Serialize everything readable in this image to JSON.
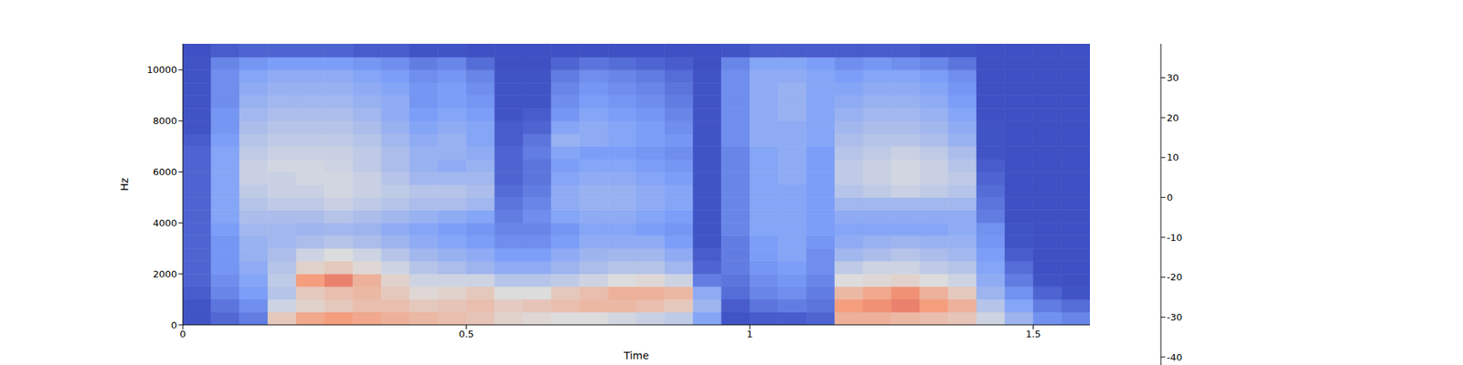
{
  "chart_data": {
    "type": "heatmap",
    "xlabel": "Time",
    "ylabel": "Hz",
    "xlim": [
      0,
      1.6
    ],
    "xticks": [
      0,
      0.5,
      1,
      1.5
    ],
    "ylim": [
      0,
      11025
    ],
    "yticks": [
      0,
      2000,
      4000,
      6000,
      8000,
      10000
    ],
    "x_edges": [
      0,
      0.05,
      0.1,
      0.15,
      0.2,
      0.25,
      0.3,
      0.35,
      0.4,
      0.45,
      0.5,
      0.55,
      0.6,
      0.65,
      0.7,
      0.75,
      0.8,
      0.85,
      0.9,
      0.95,
      1.0,
      1.05,
      1.1,
      1.15,
      1.2,
      1.25,
      1.3,
      1.35,
      1.4,
      1.45,
      1.5,
      1.55,
      1.6
    ],
    "y_edges": [
      0,
      500,
      1000,
      1500,
      2000,
      2500,
      3000,
      3500,
      4000,
      4500,
      5000,
      5500,
      6000,
      6500,
      7000,
      7500,
      8000,
      8500,
      9000,
      9500,
      10000,
      10500,
      11025
    ],
    "z": [
      [
        -40,
        -40,
        -38,
        -36,
        -36,
        -36,
        -36,
        -36,
        -36,
        -36,
        -36,
        -36,
        -36,
        -36,
        -38,
        -40,
        -40,
        -40,
        -40,
        -40,
        -40,
        -41
      ],
      [
        -35,
        -32,
        -28,
        -26,
        -24,
        -24,
        -24,
        -22,
        -20,
        -20,
        -20,
        -20,
        -20,
        -20,
        -22,
        -24,
        -24,
        -26,
        -26,
        -26,
        -28,
        -38
      ],
      [
        -30,
        -26,
        -22,
        -20,
        -18,
        -16,
        -16,
        -14,
        -12,
        -10,
        -8,
        -6,
        -6,
        -8,
        -10,
        -12,
        -14,
        -16,
        -18,
        -20,
        -24,
        -36
      ],
      [
        5,
        -5,
        -10,
        -8,
        -10,
        -12,
        -14,
        -14,
        -12,
        -8,
        -6,
        -6,
        -4,
        -6,
        -8,
        -10,
        -12,
        -14,
        -16,
        -18,
        -22,
        -36
      ],
      [
        15,
        2,
        5,
        18,
        2,
        -5,
        -12,
        -15,
        -12,
        -8,
        -6,
        -4,
        -4,
        -6,
        -8,
        -10,
        -12,
        -14,
        -16,
        -18,
        -22,
        -36
      ],
      [
        18,
        5,
        8,
        22,
        5,
        -2,
        -10,
        -14,
        -10,
        -6,
        -4,
        -4,
        -5,
        -6,
        -8,
        -10,
        -12,
        -14,
        -16,
        -18,
        -22,
        -36
      ],
      [
        15,
        8,
        10,
        12,
        0,
        -5,
        -12,
        -15,
        -12,
        -8,
        -6,
        -6,
        -8,
        -8,
        -10,
        -12,
        -14,
        -16,
        -18,
        -20,
        -24,
        -38
      ],
      [
        12,
        8,
        5,
        2,
        -5,
        -10,
        -15,
        -18,
        -14,
        -10,
        -8,
        -10,
        -12,
        -12,
        -14,
        -16,
        -18,
        -18,
        -20,
        -22,
        -26,
        -38
      ],
      [
        10,
        5,
        0,
        -5,
        -10,
        -14,
        -18,
        -20,
        -16,
        -12,
        -10,
        -14,
        -16,
        -16,
        -18,
        -20,
        -22,
        -24,
        -24,
        -26,
        -30,
        -40
      ],
      [
        8,
        6,
        2,
        -5,
        -12,
        -16,
        -20,
        -22,
        -18,
        -12,
        -10,
        -14,
        -18,
        -16,
        -16,
        -18,
        -20,
        -22,
        -22,
        -24,
        -28,
        -40
      ],
      [
        6,
        8,
        5,
        -5,
        -15,
        -18,
        -22,
        -24,
        -20,
        -14,
        -12,
        -14,
        -16,
        -18,
        -20,
        -20,
        -22,
        -24,
        -26,
        -28,
        -34,
        -41
      ],
      [
        2,
        4,
        -2,
        -10,
        -18,
        -22,
        -26,
        -28,
        -30,
        -32,
        -34,
        -36,
        -36,
        -36,
        -38,
        -38,
        -40,
        -40,
        -40,
        -40,
        -41,
        -41
      ],
      [
        0,
        6,
        -2,
        -10,
        -18,
        -22,
        -26,
        -28,
        -26,
        -28,
        -30,
        -32,
        -32,
        -30,
        -32,
        -36,
        -38,
        -40,
        -40,
        -40,
        -41,
        -41
      ],
      [
        -2,
        8,
        5,
        -8,
        -15,
        -18,
        -22,
        -24,
        -20,
        -18,
        -18,
        -20,
        -22,
        -20,
        -16,
        -20,
        -24,
        -26,
        -28,
        -30,
        -36,
        -41
      ],
      [
        -2,
        10,
        8,
        -5,
        -12,
        -15,
        -18,
        -20,
        -18,
        -16,
        -16,
        -18,
        -20,
        -22,
        -18,
        -18,
        -20,
        -22,
        -24,
        -26,
        -32,
        -41
      ],
      [
        -4,
        10,
        12,
        -2,
        -10,
        -14,
        -18,
        -20,
        -18,
        -16,
        -16,
        -18,
        -20,
        -22,
        -20,
        -20,
        -22,
        -24,
        -26,
        -28,
        -34,
        -41
      ],
      [
        -6,
        8,
        12,
        0,
        -10,
        -14,
        -18,
        -22,
        -20,
        -18,
        -18,
        -20,
        -22,
        -24,
        -22,
        -22,
        -24,
        -26,
        -28,
        -30,
        -36,
        -41
      ],
      [
        -8,
        5,
        10,
        -5,
        -14,
        -18,
        -22,
        -24,
        -22,
        -20,
        -20,
        -22,
        -24,
        -26,
        -24,
        -26,
        -28,
        -30,
        -32,
        -34,
        -38,
        -41
      ],
      [
        -20,
        -15,
        -18,
        -30,
        -36,
        -38,
        -40,
        -40,
        -40,
        -40,
        -40,
        -40,
        -40,
        -40,
        -40,
        -40,
        -40,
        -40,
        -40,
        -40,
        -41,
        -41
      ],
      [
        -40,
        -38,
        -34,
        -32,
        -30,
        -30,
        -30,
        -28,
        -28,
        -28,
        -28,
        -28,
        -28,
        -28,
        -26,
        -26,
        -26,
        -26,
        -26,
        -26,
        -28,
        -40
      ],
      [
        -38,
        -32,
        -28,
        -26,
        -24,
        -22,
        -22,
        -20,
        -20,
        -20,
        -20,
        -20,
        -20,
        -20,
        -18,
        -18,
        -18,
        -18,
        -18,
        -18,
        -20,
        -38
      ],
      [
        -38,
        -30,
        -26,
        -24,
        -22,
        -20,
        -20,
        -20,
        -20,
        -20,
        -20,
        -18,
        -18,
        -18,
        -18,
        -18,
        -16,
        -16,
        -16,
        -18,
        -20,
        -38
      ],
      [
        -36,
        -32,
        -30,
        -28,
        -26,
        -26,
        -24,
        -22,
        -22,
        -22,
        -22,
        -22,
        -22,
        -22,
        -20,
        -20,
        -20,
        -20,
        -20,
        -20,
        -22,
        -38
      ],
      [
        12,
        18,
        10,
        -2,
        -8,
        -14,
        -18,
        -20,
        -18,
        -14,
        -10,
        -8,
        -8,
        -10,
        -12,
        -14,
        -16,
        -18,
        -20,
        -22,
        -26,
        -38
      ],
      [
        12,
        20,
        15,
        0,
        -5,
        -12,
        -16,
        -20,
        -18,
        -14,
        -8,
        -6,
        -6,
        -8,
        -10,
        -12,
        -14,
        -16,
        -18,
        -20,
        -24,
        -38
      ],
      [
        10,
        22,
        20,
        2,
        -5,
        -10,
        -15,
        -20,
        -18,
        -14,
        -6,
        -4,
        -4,
        -6,
        -10,
        -12,
        -14,
        -16,
        -18,
        -20,
        -26,
        -38
      ],
      [
        8,
        18,
        12,
        -2,
        -8,
        -12,
        -16,
        -20,
        -18,
        -14,
        -8,
        -6,
        -6,
        -8,
        -12,
        -14,
        -16,
        -18,
        -20,
        -22,
        -28,
        -40
      ],
      [
        6,
        12,
        5,
        -5,
        -10,
        -14,
        -16,
        -18,
        -18,
        -14,
        -10,
        -8,
        -10,
        -12,
        -16,
        -18,
        -20,
        -22,
        -24,
        -26,
        -32,
        -40
      ],
      [
        -5,
        -10,
        -15,
        -18,
        -20,
        -22,
        -24,
        -25,
        -30,
        -32,
        -34,
        -36,
        -38,
        -40,
        -40,
        -40,
        -41,
        -41,
        -41,
        -41,
        -41,
        -41
      ],
      [
        -15,
        -20,
        -25,
        -30,
        -34,
        -38,
        -40,
        -40,
        -41,
        -41,
        -41,
        -41,
        -41,
        -41,
        -41,
        -41,
        -41,
        -41,
        -41,
        -41,
        -41,
        -41
      ],
      [
        -25,
        -30,
        -36,
        -40,
        -41,
        -41,
        -41,
        -41,
        -41,
        -41,
        -41,
        -41,
        -41,
        -41,
        -41,
        -41,
        -41,
        -41,
        -41,
        -41,
        -41,
        -41
      ],
      [
        -28,
        -34,
        -40,
        -41,
        -41,
        -41,
        -41,
        -41,
        -41,
        -41,
        -41,
        -41,
        -41,
        -41,
        -41,
        -41,
        -41,
        -41,
        -41,
        -41,
        -41,
        -41
      ]
    ],
    "colorbar": {
      "range": [
        -42,
        38.5
      ],
      "ticks": [
        -40,
        -30,
        -20,
        -10,
        0,
        10,
        20,
        30
      ]
    }
  }
}
